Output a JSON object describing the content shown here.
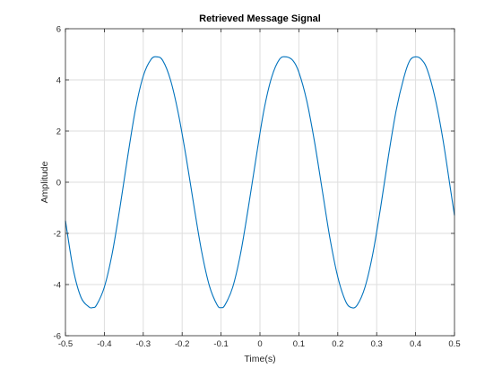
{
  "chart_data": {
    "type": "line",
    "title": "Retrieved Message Signal",
    "xlabel": "Time(s)",
    "ylabel": "Amplitude",
    "xlim": [
      -0.5,
      0.5
    ],
    "ylim": [
      -6,
      6
    ],
    "xticks": [
      -0.5,
      -0.4,
      -0.3,
      -0.2,
      -0.1,
      0,
      0.1,
      0.2,
      0.3,
      0.4,
      0.5
    ],
    "xtick_labels": [
      "-0.5",
      "-0.4",
      "-0.3",
      "-0.2",
      "-0.1",
      "0",
      "0.1",
      "0.2",
      "0.3",
      "0.4",
      "0.5"
    ],
    "yticks": [
      -6,
      -4,
      -2,
      0,
      2,
      4,
      6
    ],
    "ytick_labels": [
      "-6",
      "-4",
      "-2",
      "0",
      "2",
      "4",
      "6"
    ],
    "grid": true,
    "series": [
      {
        "color": "#0072bd",
        "x": [
          -0.5,
          -0.48,
          -0.46,
          -0.44,
          -0.43,
          -0.42,
          -0.4,
          -0.38,
          -0.36,
          -0.34,
          -0.32,
          -0.3,
          -0.28,
          -0.265,
          -0.25,
          -0.23,
          -0.21,
          -0.19,
          -0.17,
          -0.15,
          -0.13,
          -0.11,
          -0.1,
          -0.09,
          -0.07,
          -0.05,
          -0.03,
          -0.01,
          0.01,
          0.03,
          0.05,
          0.067,
          0.085,
          0.1,
          0.12,
          0.14,
          0.16,
          0.18,
          0.2,
          0.22,
          0.235,
          0.25,
          0.27,
          0.29,
          0.31,
          0.33,
          0.35,
          0.37,
          0.385,
          0.4,
          0.415,
          0.43,
          0.45,
          0.47,
          0.49,
          0.5
        ],
        "y": [
          -1.5,
          -3.4,
          -4.5,
          -4.87,
          -4.9,
          -4.8,
          -4.1,
          -2.8,
          -1.0,
          1.0,
          2.85,
          4.15,
          4.8,
          4.9,
          4.76,
          4.0,
          2.7,
          1.0,
          -0.9,
          -2.7,
          -4.05,
          -4.8,
          -4.9,
          -4.8,
          -4.1,
          -2.8,
          -1.0,
          0.95,
          2.8,
          4.1,
          4.8,
          4.9,
          4.75,
          4.3,
          3.2,
          1.6,
          -0.3,
          -2.2,
          -3.7,
          -4.65,
          -4.9,
          -4.8,
          -4.1,
          -2.8,
          -1.0,
          1.0,
          2.8,
          4.1,
          4.75,
          4.9,
          4.8,
          4.4,
          3.3,
          1.7,
          -0.3,
          -1.3
        ]
      }
    ]
  }
}
